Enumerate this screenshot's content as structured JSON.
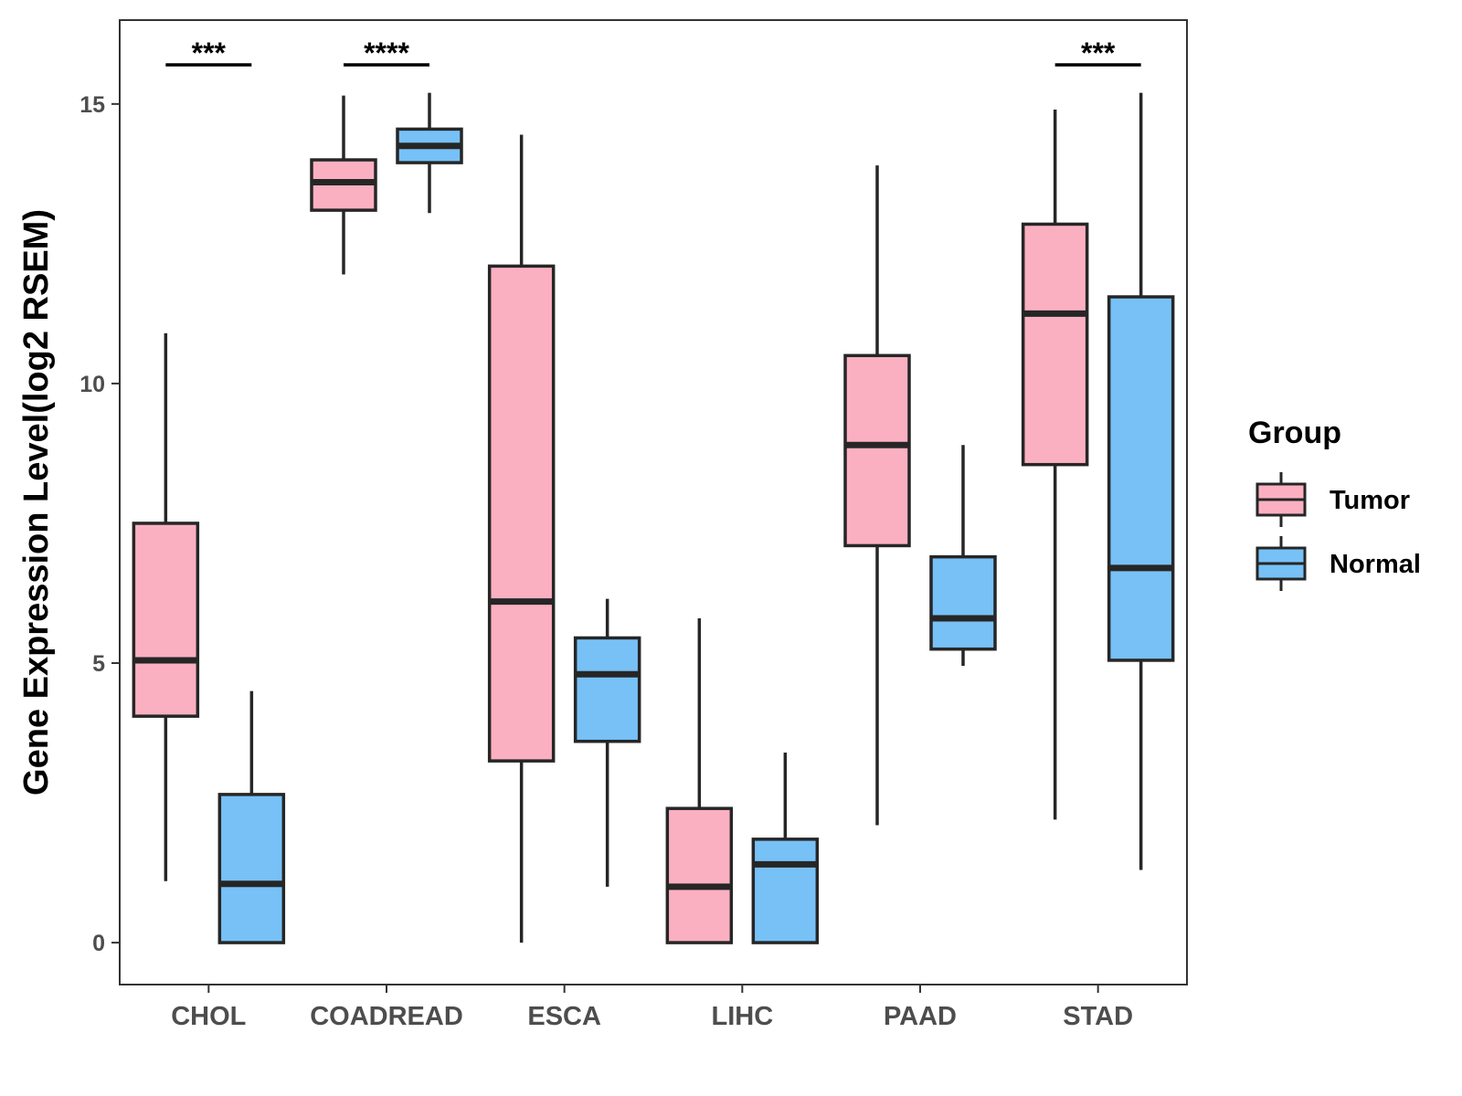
{
  "chart_data": {
    "type": "boxplot",
    "title": "",
    "xlabel": "",
    "ylabel": "Gene Expression Level(log2 RSEM)",
    "ylim": [
      -0.75,
      16.5
    ],
    "yticks": [
      0,
      5,
      10,
      15
    ],
    "yticklabels": [
      "0",
      "5",
      "10",
      "15"
    ],
    "categories": [
      "CHOL",
      "COADREAD",
      "ESCA",
      "LIHC",
      "PAAD",
      "STAD"
    ],
    "legend": {
      "title": "Group",
      "position": "right",
      "entries": [
        "Tumor",
        "Normal"
      ]
    },
    "colors": {
      "Tumor": "#FBB0C2",
      "Normal": "#77C1F7",
      "outline": "#262626",
      "frame": "#333333",
      "background": "#ffffff"
    },
    "series": [
      {
        "name": "Tumor",
        "boxes": [
          {
            "category": "CHOL",
            "min": 1.1,
            "q1": 4.05,
            "median": 5.05,
            "q3": 7.5,
            "max": 10.9
          },
          {
            "category": "COADREAD",
            "min": 11.95,
            "q1": 13.1,
            "median": 13.6,
            "q3": 14.0,
            "max": 15.15
          },
          {
            "category": "ESCA",
            "min": 0.0,
            "q1": 3.25,
            "median": 6.1,
            "q3": 12.1,
            "max": 14.45
          },
          {
            "category": "LIHC",
            "min": 0.0,
            "q1": 0.0,
            "median": 1.0,
            "q3": 2.4,
            "max": 5.8
          },
          {
            "category": "PAAD",
            "min": 2.1,
            "q1": 7.1,
            "median": 8.9,
            "q3": 10.5,
            "max": 13.9
          },
          {
            "category": "STAD",
            "min": 2.2,
            "q1": 8.55,
            "median": 11.25,
            "q3": 12.85,
            "max": 14.9
          }
        ]
      },
      {
        "name": "Normal",
        "boxes": [
          {
            "category": "CHOL",
            "min": 0.0,
            "q1": 0.0,
            "median": 1.05,
            "q3": 2.65,
            "max": 4.5
          },
          {
            "category": "COADREAD",
            "min": 13.05,
            "q1": 13.95,
            "median": 14.25,
            "q3": 14.55,
            "max": 15.2
          },
          {
            "category": "ESCA",
            "min": 1.0,
            "q1": 3.6,
            "median": 4.8,
            "q3": 5.45,
            "max": 6.15
          },
          {
            "category": "LIHC",
            "min": 0.0,
            "q1": 0.0,
            "median": 1.4,
            "q3": 1.85,
            "max": 3.4
          },
          {
            "category": "PAAD",
            "min": 4.95,
            "q1": 5.25,
            "median": 5.8,
            "q3": 6.9,
            "max": 8.9
          },
          {
            "category": "STAD",
            "min": 1.3,
            "q1": 5.05,
            "median": 6.7,
            "q3": 11.55,
            "max": 15.2
          }
        ]
      }
    ],
    "annotations": [
      {
        "category": "CHOL",
        "label": "***",
        "y": 15.7
      },
      {
        "category": "COADREAD",
        "label": "****",
        "y": 15.7
      },
      {
        "category": "STAD",
        "label": "***",
        "y": 15.7
      }
    ]
  }
}
